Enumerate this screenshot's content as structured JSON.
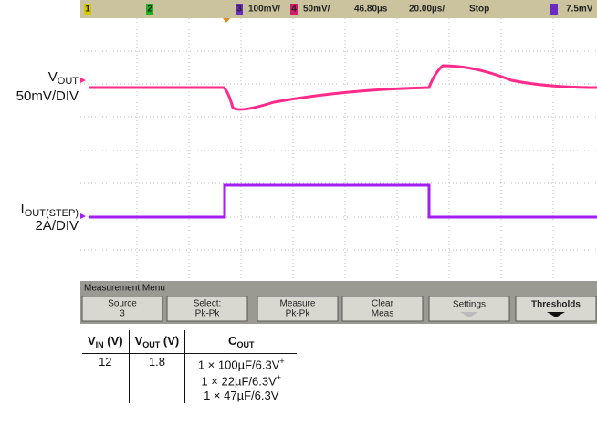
{
  "status_bar": {
    "ch1": "1",
    "ch2": "2",
    "ch3": "3",
    "ch3_scale": "100mV/",
    "ch4": "4",
    "ch4_scale": "50mV/",
    "delay": "46.80µs",
    "timebase": "20.00µs/",
    "state": "Stop",
    "trigger_level": "7.5mV"
  },
  "labels": {
    "vout": {
      "main": "V",
      "sub": "OUT"
    },
    "vout_scale": "50mV/DIV",
    "iout": {
      "main": "I",
      "sub": "OUT(STEP)"
    },
    "iout_scale": "2A/DIV"
  },
  "menu": {
    "title": "Measurement Menu",
    "buttons": [
      {
        "line1": "Source",
        "line2": "3"
      },
      {
        "line1": "Select:",
        "line2": "Pk-Pk"
      },
      {
        "line1": "Measure",
        "line2": "Pk-Pk"
      },
      {
        "line1": "Clear",
        "line2": "Meas"
      },
      {
        "line1": "Settings"
      },
      {
        "line1": "Thresholds"
      }
    ]
  },
  "table": {
    "header": [
      {
        "main": "V",
        "sub": "IN",
        "suffix": " (V)"
      },
      {
        "main": "V",
        "sub": "OUT",
        "suffix": " (V)"
      },
      {
        "main": "C",
        "sub": "OUT"
      }
    ],
    "row": {
      "vin": "12",
      "vout": "1.8",
      "cout": [
        {
          "text": "1 × 100µF/6.3V",
          "sup": "+"
        },
        {
          "text": "1 × 22µF/6.3V",
          "sup": "+"
        },
        {
          "text": "1 × 47µF/6.3V"
        }
      ]
    }
  }
}
